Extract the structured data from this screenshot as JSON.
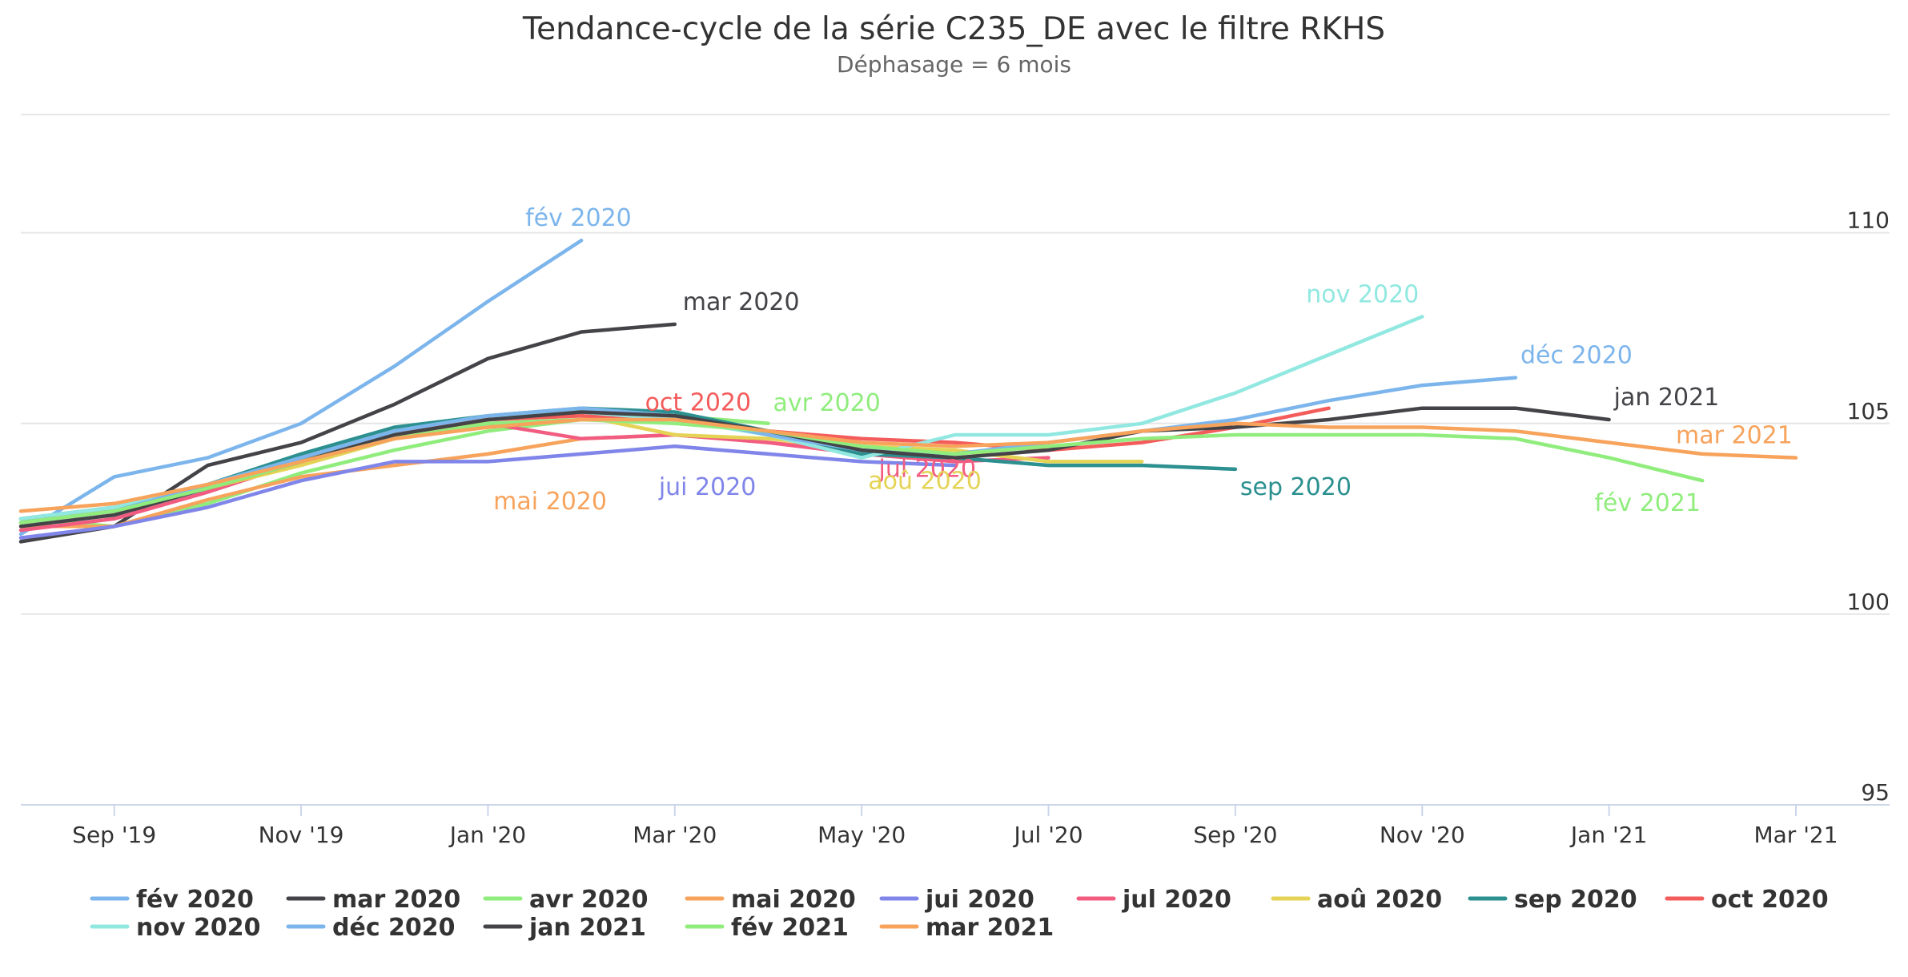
{
  "chart_data": {
    "type": "line",
    "title": "Tendance-cycle de la série C235_DE avec le filtre RKHS",
    "subtitle": "Déphasage = 6 mois",
    "xlabel": "",
    "ylabel": "",
    "x_ticks": [
      "Sep '19",
      "Nov '19",
      "Jan '20",
      "Mar '20",
      "May '20",
      "Jul '20",
      "Sep '20",
      "Nov '20",
      "Jan '21",
      "Mar '21"
    ],
    "x_tick_positions": [
      "2019-09",
      "2019-11",
      "2020-01",
      "2020-03",
      "2020-05",
      "2020-07",
      "2020-09",
      "2020-11",
      "2021-01",
      "2021-03"
    ],
    "xlim": [
      "2019-08",
      "2021-03"
    ],
    "y_ticks": [
      95,
      100,
      105,
      110
    ],
    "ylim": [
      95,
      113.1
    ],
    "grid": true,
    "legend_position": "bottom",
    "series": [
      {
        "name": "fév 2020",
        "color": "#7cb5ec",
        "x": [
          "2019-08",
          "2019-09",
          "2019-10",
          "2019-11",
          "2019-12",
          "2020-01",
          "2020-02"
        ],
        "values": [
          102.1,
          103.6,
          104.1,
          105.0,
          106.5,
          108.2,
          109.8
        ]
      },
      {
        "name": "mar 2020",
        "color": "#434348",
        "x": [
          "2019-08",
          "2019-09",
          "2019-10",
          "2019-11",
          "2019-12",
          "2020-01",
          "2020-02",
          "2020-03"
        ],
        "values": [
          101.9,
          102.3,
          103.9,
          104.5,
          105.5,
          106.7,
          107.4,
          107.6
        ]
      },
      {
        "name": "avr 2020",
        "color": "#90ed7d",
        "x": [
          "2019-08",
          "2019-09",
          "2019-10",
          "2019-11",
          "2019-12",
          "2020-01",
          "2020-02",
          "2020-03",
          "2020-04"
        ],
        "values": [
          102.5,
          102.3,
          102.9,
          103.7,
          104.3,
          104.8,
          105.1,
          105.2,
          105.0
        ]
      },
      {
        "name": "mai 2020",
        "color": "#f7a35c",
        "x": [
          "2019-08",
          "2019-09",
          "2019-10",
          "2019-11",
          "2019-12",
          "2020-01",
          "2020-02",
          "2020-03",
          "2020-04",
          "2020-05"
        ],
        "values": [
          102.3,
          102.3,
          103.0,
          103.6,
          103.9,
          104.2,
          104.6,
          104.7,
          104.5,
          104.3
        ]
      },
      {
        "name": "jui 2020",
        "color": "#8085e9",
        "x": [
          "2019-08",
          "2019-09",
          "2019-10",
          "2019-11",
          "2019-12",
          "2020-01",
          "2020-02",
          "2020-03",
          "2020-04",
          "2020-05",
          "2020-06"
        ],
        "values": [
          102.0,
          102.3,
          102.8,
          103.5,
          104.0,
          104.0,
          104.2,
          104.4,
          104.2,
          104.0,
          103.9
        ]
      },
      {
        "name": "jul 2020",
        "color": "#f15c80",
        "x": [
          "2019-08",
          "2019-09",
          "2019-10",
          "2019-11",
          "2019-12",
          "2020-01",
          "2020-02",
          "2020-03",
          "2020-04",
          "2020-05",
          "2020-06",
          "2020-07"
        ],
        "values": [
          102.2,
          102.5,
          103.2,
          104.0,
          104.6,
          105.0,
          104.6,
          104.7,
          104.5,
          104.2,
          104.0,
          104.1
        ]
      },
      {
        "name": "aoû 2020",
        "color": "#e4d354",
        "x": [
          "2019-08",
          "2019-09",
          "2019-10",
          "2019-11",
          "2019-12",
          "2020-01",
          "2020-02",
          "2020-03",
          "2020-04",
          "2020-05",
          "2020-06",
          "2020-07",
          "2020-08"
        ],
        "values": [
          102.4,
          102.7,
          103.3,
          103.9,
          104.6,
          105.1,
          105.2,
          104.7,
          104.6,
          104.4,
          104.3,
          104.0,
          104.0
        ]
      },
      {
        "name": "sep 2020",
        "color": "#2b908f",
        "x": [
          "2019-08",
          "2019-09",
          "2019-10",
          "2019-11",
          "2019-12",
          "2020-01",
          "2020-02",
          "2020-03",
          "2020-04",
          "2020-05",
          "2020-06",
          "2020-07",
          "2020-08",
          "2020-09"
        ],
        "values": [
          102.5,
          102.8,
          103.4,
          104.2,
          104.9,
          105.2,
          105.4,
          105.3,
          104.8,
          104.2,
          104.1,
          103.9,
          103.9,
          103.8
        ]
      },
      {
        "name": "oct 2020",
        "color": "#f45b5b",
        "x": [
          "2019-08",
          "2019-09",
          "2019-10",
          "2019-11",
          "2019-12",
          "2020-01",
          "2020-02",
          "2020-03",
          "2020-04",
          "2020-05",
          "2020-06",
          "2020-07",
          "2020-08",
          "2020-09",
          "2020-10"
        ],
        "values": [
          102.4,
          102.7,
          103.3,
          104.1,
          104.8,
          105.1,
          105.2,
          105.1,
          104.8,
          104.6,
          104.5,
          104.3,
          104.5,
          104.9,
          105.4
        ]
      },
      {
        "name": "nov 2020",
        "color": "#91e8e1",
        "x": [
          "2019-08",
          "2019-09",
          "2019-10",
          "2019-11",
          "2019-12",
          "2020-01",
          "2020-02",
          "2020-03",
          "2020-04",
          "2020-05",
          "2020-06",
          "2020-07",
          "2020-08",
          "2020-09",
          "2020-10",
          "2020-11"
        ],
        "values": [
          102.5,
          102.8,
          103.4,
          104.1,
          104.8,
          105.2,
          105.3,
          105.1,
          104.7,
          104.1,
          104.7,
          104.7,
          105.0,
          105.8,
          106.8,
          107.8
        ]
      },
      {
        "name": "déc 2020",
        "color": "#7cb5ec",
        "x": [
          "2019-08",
          "2019-09",
          "2019-10",
          "2019-11",
          "2019-12",
          "2020-01",
          "2020-02",
          "2020-03",
          "2020-04",
          "2020-05",
          "2020-06",
          "2020-07",
          "2020-08",
          "2020-09",
          "2020-10",
          "2020-11",
          "2020-12"
        ],
        "values": [
          102.4,
          102.7,
          103.4,
          104.1,
          104.8,
          105.2,
          105.4,
          105.2,
          104.7,
          104.3,
          104.2,
          104.5,
          104.8,
          105.1,
          105.6,
          106.0,
          106.2
        ]
      },
      {
        "name": "jan 2021",
        "color": "#434348",
        "x": [
          "2019-08",
          "2019-09",
          "2019-10",
          "2019-11",
          "2019-12",
          "2020-01",
          "2020-02",
          "2020-03",
          "2020-04",
          "2020-05",
          "2020-06",
          "2020-07",
          "2020-08",
          "2020-09",
          "2020-10",
          "2020-11",
          "2020-12",
          "2021-01"
        ],
        "values": [
          102.3,
          102.6,
          103.3,
          104.0,
          104.7,
          105.1,
          105.3,
          105.2,
          104.8,
          104.3,
          104.1,
          104.3,
          104.8,
          104.9,
          105.1,
          105.4,
          105.4,
          105.1
        ]
      },
      {
        "name": "fév 2021",
        "color": "#90ed7d",
        "x": [
          "2019-08",
          "2019-09",
          "2019-10",
          "2019-11",
          "2019-12",
          "2020-01",
          "2020-02",
          "2020-03",
          "2020-04",
          "2020-05",
          "2020-06",
          "2020-07",
          "2020-08",
          "2020-09",
          "2020-10",
          "2020-11",
          "2020-12",
          "2021-01",
          "2021-02"
        ],
        "values": [
          102.4,
          102.7,
          103.3,
          104.0,
          104.6,
          105.0,
          105.1,
          105.0,
          104.8,
          104.4,
          104.2,
          104.4,
          104.6,
          104.7,
          104.7,
          104.7,
          104.6,
          104.1,
          103.5
        ]
      },
      {
        "name": "mar 2021",
        "color": "#f7a35c",
        "x": [
          "2019-08",
          "2019-09",
          "2019-10",
          "2019-11",
          "2019-12",
          "2020-01",
          "2020-02",
          "2020-03",
          "2020-04",
          "2020-05",
          "2020-06",
          "2020-07",
          "2020-08",
          "2020-09",
          "2020-10",
          "2020-11",
          "2020-12",
          "2021-01",
          "2021-02",
          "2021-03"
        ],
        "values": [
          102.7,
          102.9,
          103.4,
          104.0,
          104.6,
          104.9,
          105.1,
          105.1,
          104.8,
          104.5,
          104.4,
          104.5,
          104.8,
          105.0,
          104.9,
          104.9,
          104.8,
          104.5,
          104.2,
          104.1
        ]
      }
    ],
    "end_labels": [
      {
        "series": "fév 2020",
        "text": "fév 2020"
      },
      {
        "series": "mar 2020",
        "text": "mar 2020"
      },
      {
        "series": "avr 2020",
        "text": "avr 2020"
      },
      {
        "series": "mai 2020",
        "text": "mai 2020"
      },
      {
        "series": "jui 2020",
        "text": "jui 2020"
      },
      {
        "series": "jul 2020",
        "text": "jul 2020"
      },
      {
        "series": "aoû 2020",
        "text": "aoû 2020"
      },
      {
        "series": "sep 2020",
        "text": "sep 2020"
      },
      {
        "series": "oct 2020",
        "text": "oct 2020"
      },
      {
        "series": "nov 2020",
        "text": "nov 2020"
      },
      {
        "series": "déc 2020",
        "text": "déc 2020"
      },
      {
        "series": "jan 2021",
        "text": "jan 2021"
      },
      {
        "series": "fév 2021",
        "text": "fév 2021"
      },
      {
        "series": "mar 2021",
        "text": "mar 2021"
      }
    ]
  }
}
